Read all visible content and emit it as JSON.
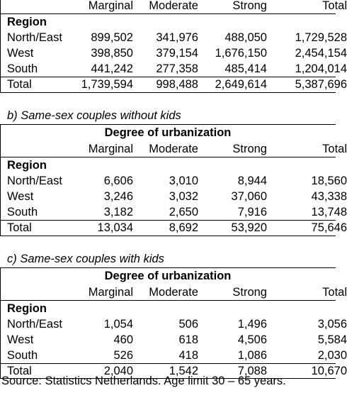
{
  "table_a": {
    "columns": [
      "Marginal",
      "Moderate",
      "Strong",
      "Total"
    ],
    "region_label": "Region",
    "rows": [
      {
        "label": "North/East",
        "values": [
          "899,502",
          "341,976",
          "488,050",
          "1,729,528"
        ]
      },
      {
        "label": "West",
        "values": [
          "398,850",
          "379,154",
          "1,676,150",
          "2,454,154"
        ]
      },
      {
        "label": "South",
        "values": [
          "441,242",
          "277,358",
          "485,414",
          "1,204,014"
        ]
      },
      {
        "label": "Total",
        "values": [
          "1,739,594",
          "998,488",
          "2,649,614",
          "5,387,696"
        ]
      }
    ]
  },
  "table_b": {
    "title": "b) Same-sex couples without kids",
    "group_header": "Degree of urbanization",
    "columns": [
      "Marginal",
      "Moderate",
      "Strong",
      "Total"
    ],
    "region_label": "Region",
    "rows": [
      {
        "label": "North/East",
        "values": [
          "6,606",
          "3,010",
          "8,944",
          "18,560"
        ]
      },
      {
        "label": "West",
        "values": [
          "3,246",
          "3,032",
          "37,060",
          "43,338"
        ]
      },
      {
        "label": "South",
        "values": [
          "3,182",
          "2,650",
          "7,916",
          "13,748"
        ]
      },
      {
        "label": "Total",
        "values": [
          "13,034",
          "8,692",
          "53,920",
          "75,646"
        ]
      }
    ]
  },
  "table_c": {
    "title": "c) Same-sex couples with kids",
    "group_header": "Degree of urbanization",
    "columns": [
      "Marginal",
      "Moderate",
      "Strong",
      "Total"
    ],
    "region_label": "Region",
    "rows": [
      {
        "label": "North/East",
        "values": [
          "1,054",
          "506",
          "1,496",
          "3,056"
        ]
      },
      {
        "label": "West",
        "values": [
          "460",
          "618",
          "4,506",
          "5,584"
        ]
      },
      {
        "label": "South",
        "values": [
          "526",
          "418",
          "1,086",
          "2,030"
        ]
      },
      {
        "label": "Total",
        "values": [
          "2,040",
          "1,542",
          "7,088",
          "10,670"
        ]
      }
    ]
  },
  "source": "Source: Statistics Netherlands. Age limit 30 – 65 years."
}
